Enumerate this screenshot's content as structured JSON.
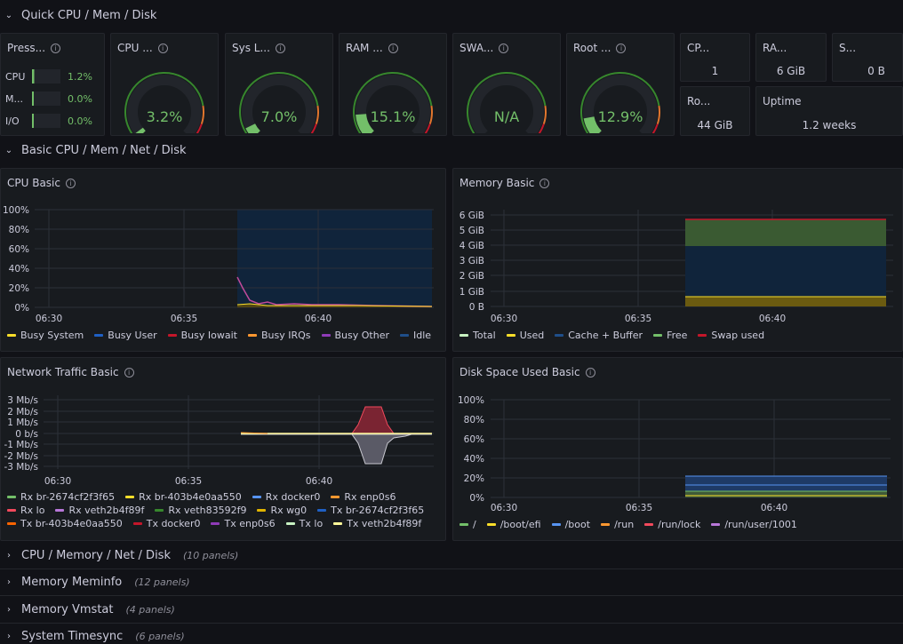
{
  "rows": {
    "quick": {
      "title": "Quick CPU / Mem / Disk"
    },
    "basic": {
      "title": "Basic CPU / Mem / Net / Disk"
    },
    "cpu_mem": {
      "title": "CPU / Memory / Net / Disk",
      "count": "(10 panels)"
    },
    "meminfo": {
      "title": "Memory Meminfo",
      "count": "(12 panels)"
    },
    "vmstat": {
      "title": "Memory Vmstat",
      "count": "(4 panels)"
    },
    "timesync": {
      "title": "System Timesync",
      "count": "(6 panels)"
    }
  },
  "pressure": {
    "title": "Press...",
    "rows": [
      {
        "label": "CPU",
        "value": "1.2%",
        "level": 0.012
      },
      {
        "label": "M...",
        "value": "0.0%",
        "level": 0.0
      },
      {
        "label": "I/O",
        "value": "0.0%",
        "level": 0.0
      }
    ]
  },
  "gauges": [
    {
      "title": "CPU ...",
      "value": "3.2%",
      "level": 0.032,
      "color": "#73bf69"
    },
    {
      "title": "Sys L...",
      "value": "7.0%",
      "level": 0.07,
      "color": "#73bf69"
    },
    {
      "title": "RAM ...",
      "value": "15.1%",
      "level": 0.151,
      "color": "#73bf69"
    },
    {
      "title": "SWA...",
      "value": "N/A",
      "level": 0.0,
      "color": "#73bf69"
    },
    {
      "title": "Root ...",
      "value": "12.9%",
      "level": 0.129,
      "color": "#73bf69"
    }
  ],
  "stats": {
    "cpu_cores": {
      "title": "CP...",
      "value": "1"
    },
    "ram_total": {
      "title": "RA...",
      "value": "6 GiB"
    },
    "swap_total": {
      "title": "S...",
      "value": "0 B"
    },
    "rootfs_total": {
      "title": "Ro...",
      "value": "44 GiB"
    },
    "uptime": {
      "title": "Uptime",
      "value": "1.2 weeks"
    }
  },
  "colors": {
    "green": "#73bf69",
    "yellow": "#fade2a",
    "blue": "#5794f2",
    "orange": "#ff9830",
    "red": "#f2495c",
    "purple": "#b877d9",
    "darkblue": "#1f60c4",
    "darkred": "#c4162a"
  },
  "cpu_basic": {
    "title": "CPU Basic",
    "legend": [
      {
        "label": "Busy System",
        "color": "#fade2a"
      },
      {
        "label": "Busy User",
        "color": "#1f60c4"
      },
      {
        "label": "Busy Iowait",
        "color": "#c4162a"
      },
      {
        "label": "Busy IRQs",
        "color": "#ff9830"
      },
      {
        "label": "Busy Other",
        "color": "#8f3bb8"
      },
      {
        "label": "Idle",
        "color": "#1f4f8a"
      }
    ]
  },
  "memory_basic": {
    "title": "Memory Basic",
    "legend": [
      {
        "label": "Total",
        "color": "#c8f2c2"
      },
      {
        "label": "Used",
        "color": "#fade2a"
      },
      {
        "label": "Cache + Buffer",
        "color": "#1f4f8a"
      },
      {
        "label": "Free",
        "color": "#73bf69"
      },
      {
        "label": "Swap used",
        "color": "#c4162a"
      }
    ]
  },
  "network_basic": {
    "title": "Network Traffic Basic",
    "legend": [
      {
        "label": "Rx br-2674cf2f3f65",
        "color": "#73bf69"
      },
      {
        "label": "Rx br-403b4e0aa550",
        "color": "#fade2a"
      },
      {
        "label": "Rx docker0",
        "color": "#5794f2"
      },
      {
        "label": "Rx enp0s6",
        "color": "#ff9830"
      },
      {
        "label": "Rx lo",
        "color": "#f2495c"
      },
      {
        "label": "Rx veth2b4f89f",
        "color": "#b877d9"
      },
      {
        "label": "Rx veth83592f9",
        "color": "#37872d"
      },
      {
        "label": "Rx wg0",
        "color": "#e0b400"
      },
      {
        "label": "Tx br-2674cf2f3f65",
        "color": "#1f60c4"
      },
      {
        "label": "Tx br-403b4e0aa550",
        "color": "#fa6400"
      },
      {
        "label": "Tx docker0",
        "color": "#c4162a"
      },
      {
        "label": "Tx enp0s6",
        "color": "#8f3bb8"
      },
      {
        "label": "Tx lo",
        "color": "#c8f2c2"
      },
      {
        "label": "Tx veth2b4f89f",
        "color": "#fff899"
      }
    ]
  },
  "disk_basic": {
    "title": "Disk Space Used Basic",
    "legend": [
      {
        "label": "/",
        "color": "#73bf69"
      },
      {
        "label": "/boot/efi",
        "color": "#fade2a"
      },
      {
        "label": "/boot",
        "color": "#5794f2"
      },
      {
        "label": "/run",
        "color": "#ff9830"
      },
      {
        "label": "/run/lock",
        "color": "#f2495c"
      },
      {
        "label": "/run/user/1001",
        "color": "#b877d9"
      }
    ]
  },
  "chart_data": [
    {
      "type": "area",
      "title": "CPU Basic",
      "x_ticks": [
        "06:30",
        "06:35",
        "06:40"
      ],
      "y_ticks": [
        "100%",
        "80%",
        "60%",
        "40%",
        "20%",
        "0%"
      ],
      "ylim": [
        0,
        100
      ],
      "series": [
        {
          "name": "Busy System",
          "values": [
            4,
            3,
            2,
            2,
            2,
            2,
            2,
            2,
            2,
            2
          ]
        },
        {
          "name": "Busy User",
          "values": [
            30,
            14,
            4,
            5,
            4,
            3,
            3,
            3,
            2,
            2
          ]
        },
        {
          "name": "Idle",
          "values": [
            66,
            83,
            94,
            93,
            94,
            95,
            95,
            95,
            96,
            96
          ]
        }
      ]
    },
    {
      "type": "area",
      "title": "Memory Basic",
      "x_ticks": [
        "06:30",
        "06:35",
        "06:40"
      ],
      "y_ticks": [
        "6 GiB",
        "5 GiB",
        "4 GiB",
        "3 GiB",
        "2 GiB",
        "1 GiB",
        "0 B"
      ],
      "ylim": [
        0,
        6.4
      ],
      "series": [
        {
          "name": "Total",
          "values": [
            5.8,
            5.8,
            5.8,
            5.8
          ]
        },
        {
          "name": "Used",
          "values": [
            0.7,
            0.7,
            0.7,
            0.7
          ]
        },
        {
          "name": "Cache + Buffer",
          "values": [
            3.3,
            3.3,
            3.3,
            3.3
          ]
        },
        {
          "name": "Free",
          "values": [
            1.8,
            1.8,
            1.8,
            1.8
          ]
        }
      ]
    },
    {
      "type": "area",
      "title": "Network Traffic Basic",
      "x_ticks": [
        "06:30",
        "06:35",
        "06:40"
      ],
      "y_ticks": [
        "3 Mb/s",
        "2 Mb/s",
        "1 Mb/s",
        "0 b/s",
        "-1 Mb/s",
        "-2 Mb/s",
        "-3 Mb/s"
      ],
      "ylim": [
        -3.5,
        3.5
      ],
      "series": [
        {
          "name": "Rx lo",
          "values": [
            0.05,
            0,
            0,
            0,
            0,
            0,
            0.3,
            2.6,
            2.6,
            0.4,
            0,
            0,
            0
          ]
        },
        {
          "name": "Tx lo",
          "values": [
            0,
            0,
            0,
            0,
            0,
            0,
            -0.3,
            -2.6,
            -2.6,
            -0.4,
            0,
            -0.2,
            0
          ]
        }
      ]
    },
    {
      "type": "area",
      "title": "Disk Space Used Basic",
      "x_ticks": [
        "06:30",
        "06:35",
        "06:40"
      ],
      "y_ticks": [
        "100%",
        "80%",
        "60%",
        "40%",
        "20%",
        "0%"
      ],
      "ylim": [
        0,
        100
      ],
      "series": [
        {
          "name": "/",
          "values": [
            13,
            13
          ]
        },
        {
          "name": "/boot/efi",
          "values": [
            6,
            6
          ]
        },
        {
          "name": "/boot",
          "values": [
            22,
            22
          ]
        },
        {
          "name": "/run",
          "values": [
            1,
            1
          ]
        }
      ]
    }
  ]
}
